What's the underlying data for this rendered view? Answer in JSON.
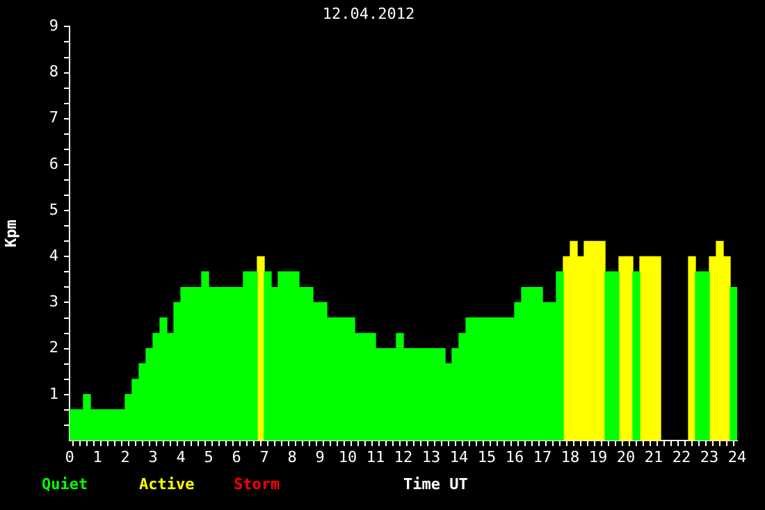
{
  "chart_data": {
    "type": "bar",
    "title": "12.04.2012",
    "xlabel": "Time UT",
    "ylabel": "Kpm",
    "x": [
      0.125,
      0.375,
      0.625,
      0.875,
      1.125,
      1.375,
      1.625,
      1.875,
      2.125,
      2.375,
      2.625,
      2.875,
      3.125,
      3.375,
      3.625,
      3.875,
      4.125,
      4.375,
      4.625,
      4.875,
      5.125,
      5.375,
      5.625,
      5.875,
      6.125,
      6.375,
      6.625,
      6.875,
      7.125,
      7.375,
      7.625,
      7.875,
      8.125,
      8.375,
      8.625,
      8.875,
      9.125,
      9.375,
      9.625,
      9.875,
      10.125,
      10.375,
      10.625,
      10.875,
      11.125,
      11.375,
      11.625,
      11.875,
      12.125,
      12.375,
      12.625,
      12.875,
      13.125,
      13.375,
      13.625,
      13.875,
      14.125,
      14.375,
      14.625,
      14.875,
      15.125,
      15.375,
      15.625,
      15.875,
      16.125,
      16.375,
      16.625,
      16.875,
      17.125,
      17.375,
      17.625,
      17.875,
      18.125,
      18.375,
      18.625,
      18.875,
      19.125,
      19.375,
      19.625,
      19.875,
      20.125,
      20.375,
      20.625,
      20.875,
      21.125,
      21.375,
      21.625,
      21.875,
      22.125,
      22.375,
      22.625,
      22.875,
      23.125,
      23.375,
      23.625,
      23.875
    ],
    "series": [
      {
        "name": "Quiet",
        "color": "#00ff00",
        "values": [
          0.67,
          0.67,
          1.0,
          0.67,
          0.67,
          0.67,
          0.67,
          0.67,
          1.0,
          1.33,
          1.67,
          2.0,
          2.33,
          2.67,
          2.33,
          3.0,
          3.33,
          3.33,
          3.33,
          3.67,
          3.33,
          3.33,
          3.33,
          3.33,
          3.33,
          3.67,
          3.67,
          null,
          3.67,
          3.33,
          3.67,
          3.67,
          3.67,
          3.33,
          3.33,
          3.0,
          3.0,
          2.67,
          2.67,
          2.67,
          2.67,
          2.33,
          2.33,
          2.33,
          2.0,
          2.0,
          2.0,
          2.33,
          2.0,
          2.0,
          2.0,
          2.0,
          2.0,
          2.0,
          1.67,
          2.0,
          2.33,
          2.67,
          2.67,
          2.67,
          2.67,
          2.67,
          2.67,
          2.67,
          3.0,
          3.33,
          3.33,
          3.33,
          3.0,
          3.0,
          3.67,
          null,
          null,
          null,
          null,
          null,
          null,
          3.67,
          3.67,
          null,
          null,
          3.67,
          null,
          null,
          null,
          null,
          null,
          null,
          null,
          null,
          3.67,
          3.67,
          null,
          null,
          null,
          3.33
        ]
      },
      {
        "name": "Active",
        "color": "#ffff00",
        "values": [
          null,
          null,
          null,
          null,
          null,
          null,
          null,
          null,
          null,
          null,
          null,
          null,
          null,
          null,
          null,
          null,
          null,
          null,
          null,
          null,
          null,
          null,
          null,
          null,
          null,
          null,
          null,
          4.0,
          null,
          null,
          null,
          null,
          null,
          null,
          null,
          null,
          null,
          null,
          null,
          null,
          null,
          null,
          null,
          null,
          null,
          null,
          null,
          null,
          null,
          null,
          null,
          null,
          null,
          null,
          null,
          null,
          null,
          null,
          null,
          null,
          null,
          null,
          null,
          null,
          null,
          null,
          null,
          null,
          null,
          null,
          null,
          4.0,
          4.33,
          4.0,
          4.33,
          4.33,
          4.33,
          null,
          null,
          4.0,
          4.0,
          null,
          4.0,
          4.0,
          4.0,
          null,
          null,
          null,
          null,
          4.0,
          null,
          null,
          4.0,
          4.33,
          4.0,
          null
        ]
      },
      {
        "name": "Storm",
        "color": "#ff0000",
        "values": [
          null,
          null,
          null,
          null,
          null,
          null,
          null,
          null,
          null,
          null,
          null,
          null,
          null,
          null,
          null,
          null,
          null,
          null,
          null,
          null,
          null,
          null,
          null,
          null,
          null,
          null,
          null,
          null,
          null,
          null,
          null,
          null,
          null,
          null,
          null,
          null,
          null,
          null,
          null,
          null,
          null,
          null,
          null,
          null,
          null,
          null,
          null,
          null,
          null,
          null,
          null,
          null,
          null,
          null,
          null,
          null,
          null,
          null,
          null,
          null,
          null,
          null,
          null,
          null,
          null,
          null,
          null,
          null,
          null,
          null,
          null,
          null,
          null,
          null,
          null,
          null,
          null,
          null,
          null,
          null,
          null,
          null,
          null,
          null,
          null,
          null,
          null,
          null,
          null,
          null,
          null,
          null,
          null,
          null,
          null,
          null
        ]
      }
    ],
    "xlim": [
      0,
      24
    ],
    "xticks": [
      0,
      {
        "value": 0.25,
        "label": null
      },
      {
        "value": 0.5,
        "label": null
      },
      {
        "value": 0.75,
        "label": null
      },
      1,
      {
        "value": 1.25,
        "label": null
      },
      {
        "value": 1.5,
        "label": null
      },
      {
        "value": 1.75,
        "label": null
      },
      2,
      {
        "value": 2.25,
        "label": null
      },
      {
        "value": 2.5,
        "label": null
      },
      {
        "value": 2.75,
        "label": null
      },
      3,
      {
        "value": 3.25,
        "label": null
      },
      {
        "value": 3.5,
        "label": null
      },
      {
        "value": 3.75,
        "label": null
      },
      4,
      {
        "value": 4.25,
        "label": null
      },
      {
        "value": 4.5,
        "label": null
      },
      {
        "value": 4.75,
        "label": null
      },
      5,
      {
        "value": 5.25,
        "label": null
      },
      {
        "value": 5.5,
        "label": null
      },
      {
        "value": 5.75,
        "label": null
      },
      6,
      {
        "value": 6.25,
        "label": null
      },
      {
        "value": 6.5,
        "label": null
      },
      {
        "value": 6.75,
        "label": null
      },
      7,
      {
        "value": 7.25,
        "label": null
      },
      {
        "value": 7.5,
        "label": null
      },
      {
        "value": 7.75,
        "label": null
      },
      8,
      {
        "value": 8.25,
        "label": null
      },
      {
        "value": 8.5,
        "label": null
      },
      {
        "value": 8.75,
        "label": null
      },
      9,
      {
        "value": 9.25,
        "label": null
      },
      {
        "value": 9.5,
        "label": null
      },
      {
        "value": 9.75,
        "label": null
      },
      10,
      {
        "value": 10.25,
        "label": null
      },
      {
        "value": 10.5,
        "label": null
      },
      {
        "value": 10.75,
        "label": null
      },
      11,
      {
        "value": 11.25,
        "label": null
      },
      {
        "value": 11.5,
        "label": null
      },
      {
        "value": 11.75,
        "label": null
      },
      12,
      {
        "value": 12.25,
        "label": null
      },
      {
        "value": 12.5,
        "label": null
      },
      {
        "value": 12.75,
        "label": null
      },
      13,
      {
        "value": 13.25,
        "label": null
      },
      {
        "value": 13.5,
        "label": null
      },
      {
        "value": 13.75,
        "label": null
      },
      14,
      {
        "value": 14.25,
        "label": null
      },
      {
        "value": 14.5,
        "label": null
      },
      {
        "value": 14.75,
        "label": null
      },
      15,
      {
        "value": 15.25,
        "label": null
      },
      {
        "value": 15.5,
        "label": null
      },
      {
        "value": 15.75,
        "label": null
      },
      16,
      {
        "value": 16.25,
        "label": null
      },
      {
        "value": 16.5,
        "label": null
      },
      {
        "value": 16.75,
        "label": null
      },
      17,
      {
        "value": 17.25,
        "label": null
      },
      {
        "value": 17.5,
        "label": null
      },
      {
        "value": 17.75,
        "label": null
      },
      18,
      {
        "value": 18.25,
        "label": null
      },
      {
        "value": 18.5,
        "label": null
      },
      {
        "value": 18.75,
        "label": null
      },
      19,
      {
        "value": 19.25,
        "label": null
      },
      {
        "value": 19.5,
        "label": null
      },
      {
        "value": 19.75,
        "label": null
      },
      20,
      {
        "value": 20.25,
        "label": null
      },
      {
        "value": 20.5,
        "label": null
      },
      {
        "value": 20.75,
        "label": null
      },
      21,
      {
        "value": 21.25,
        "label": null
      },
      {
        "value": 21.5,
        "label": null
      },
      {
        "value": 21.75,
        "label": null
      },
      22,
      {
        "value": 22.25,
        "label": null
      },
      {
        "value": 22.5,
        "label": null
      },
      {
        "value": 22.75,
        "label": null
      },
      23,
      {
        "value": 23.25,
        "label": null
      },
      {
        "value": 23.5,
        "label": null
      },
      {
        "value": 23.75,
        "label": null
      },
      24
    ],
    "ylim": [
      0,
      9
    ],
    "yticks": [
      {
        "value": 0.333,
        "label": null
      },
      {
        "value": 0.667,
        "label": null
      },
      1,
      {
        "value": 1.333,
        "label": null
      },
      {
        "value": 1.667,
        "label": null
      },
      2,
      {
        "value": 2.333,
        "label": null
      },
      {
        "value": 2.667,
        "label": null
      },
      3,
      {
        "value": 3.333,
        "label": null
      },
      {
        "value": 3.667,
        "label": null
      },
      4,
      {
        "value": 4.333,
        "label": null
      },
      {
        "value": 4.667,
        "label": null
      },
      5,
      {
        "value": 5.333,
        "label": null
      },
      {
        "value": 5.667,
        "label": null
      },
      6,
      {
        "value": 6.333,
        "label": null
      },
      {
        "value": 6.667,
        "label": null
      },
      7,
      {
        "value": 7.333,
        "label": null
      },
      {
        "value": 7.667,
        "label": null
      },
      8,
      {
        "value": 8.333,
        "label": null
      },
      {
        "value": 8.667,
        "label": null
      },
      9
    ],
    "grid": false,
    "legend": "bottom left"
  }
}
